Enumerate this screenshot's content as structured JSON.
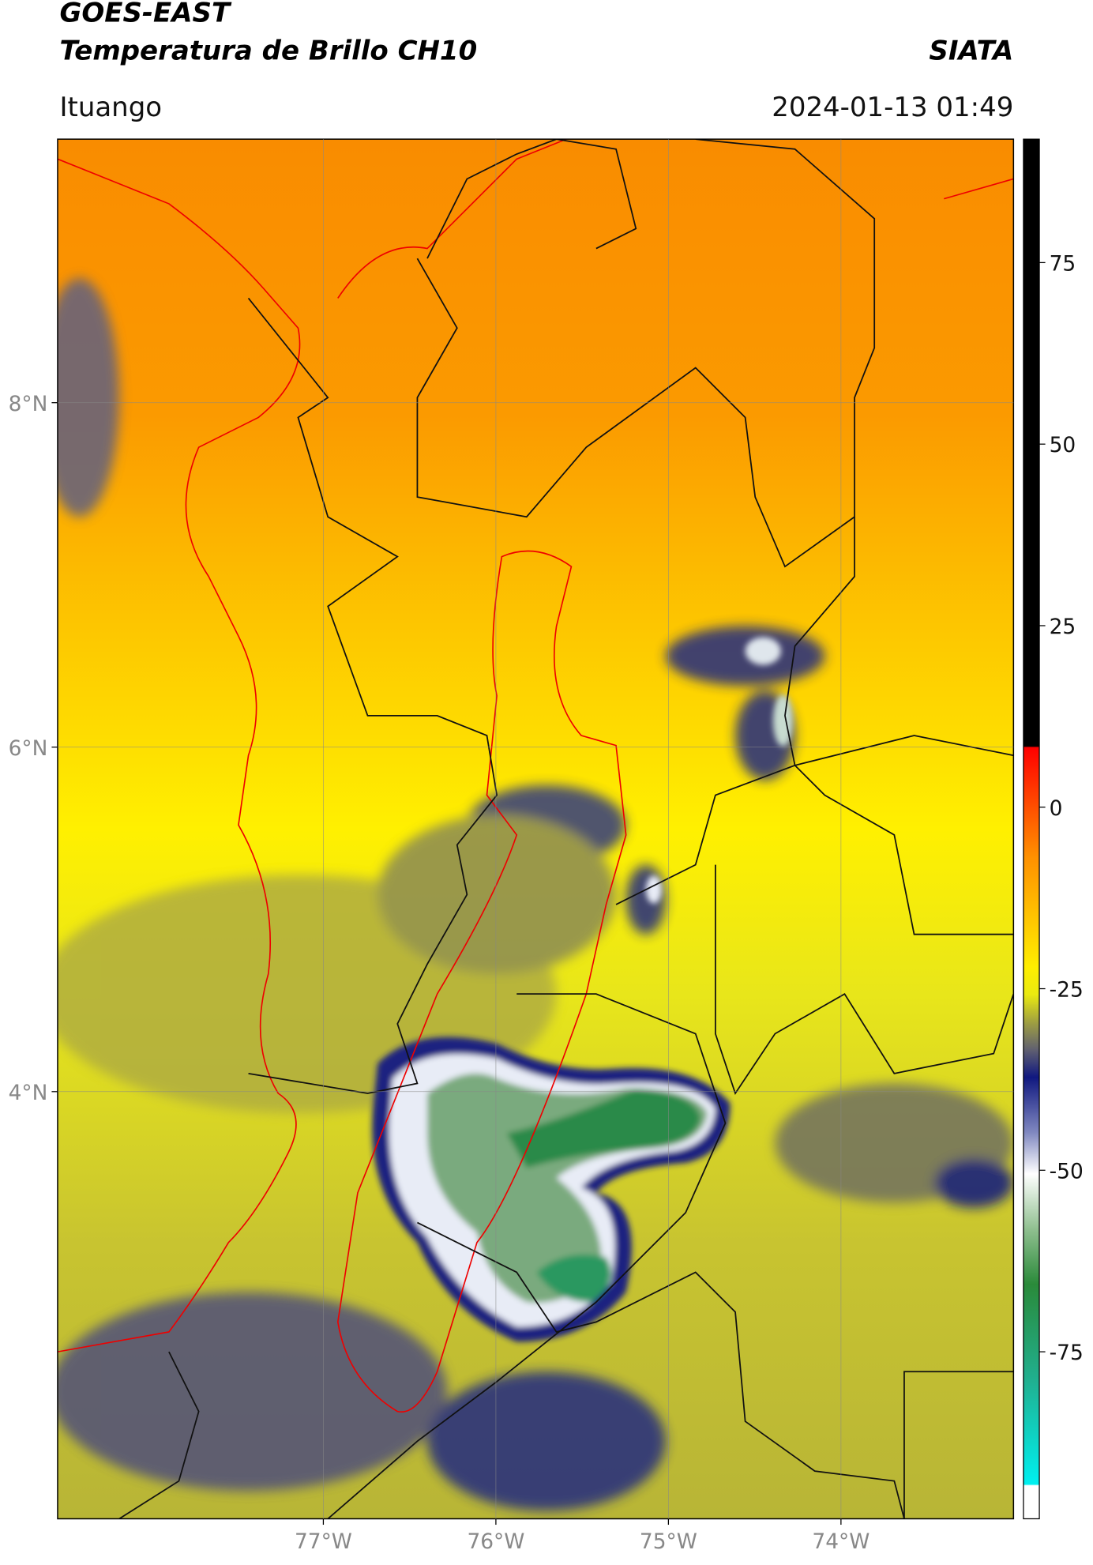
{
  "header": {
    "title": "GOES-EAST",
    "subtitle": "Temperatura de Brillo CH10",
    "agency": "SIATA",
    "region": "Ituango",
    "datetime": "2024-01-13 01:49"
  },
  "map": {
    "xlim": [
      -78.54,
      -73.0
    ],
    "ylim": [
      1.52,
      9.53
    ],
    "xticks": [
      {
        "value": -77,
        "label": "77°W"
      },
      {
        "value": -76,
        "label": "76°W"
      },
      {
        "value": -75,
        "label": "75°W"
      },
      {
        "value": -74,
        "label": "74°W"
      }
    ],
    "yticks": [
      {
        "value": 8,
        "label": "8°N"
      },
      {
        "value": 6,
        "label": "6°N"
      },
      {
        "value": 4,
        "label": "4°N"
      }
    ]
  },
  "colorbar": {
    "lim": [
      -98,
      92
    ],
    "ticks": [
      75,
      50,
      25,
      0,
      -25,
      -50,
      -75
    ]
  }
}
